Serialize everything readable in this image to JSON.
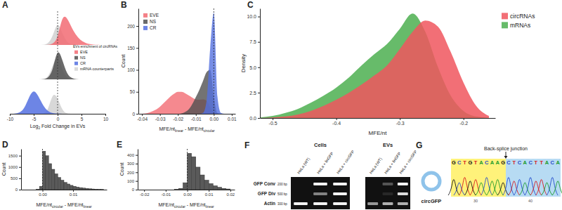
{
  "chart_data": [
    {
      "panel": "A",
      "type": "ridgeline",
      "x": [
        -10,
        -9,
        -8,
        -7,
        -6,
        -5,
        -4,
        -3,
        -2,
        -1,
        0,
        1,
        2,
        3,
        4,
        5,
        6,
        7,
        8,
        9,
        10
      ],
      "series": [
        {
          "name": "EVE",
          "color": "#f26b73",
          "values": [
            0,
            0,
            0,
            0,
            0,
            0,
            0,
            0,
            0,
            0.02,
            0.1,
            0.55,
            0.5,
            0.3,
            0.16,
            0.07,
            0.03,
            0.01,
            0,
            0,
            0
          ]
        },
        {
          "name": "NS",
          "color": "#505050",
          "values": [
            0,
            0,
            0,
            0,
            0,
            0,
            0,
            0,
            0.02,
            0.15,
            0.6,
            0.35,
            0.08,
            0.02,
            0,
            0,
            0,
            0,
            0,
            0,
            0
          ]
        },
        {
          "name": "CR",
          "color": "#5470e0",
          "values": [
            0,
            0,
            0.02,
            0.08,
            0.3,
            0.45,
            0.32,
            0.14,
            0.04,
            0.01,
            0,
            0,
            0,
            0,
            0,
            0,
            0,
            0,
            0,
            0,
            0
          ]
        }
      ],
      "counterparts": {
        "name": "mRNA counterparts",
        "color": "#d4d4d4",
        "values": [
          [
            0,
            0,
            0,
            0,
            0,
            0,
            0,
            0,
            0.02,
            0.15,
            0.45,
            0.2,
            0.04,
            0.01,
            0,
            0,
            0,
            0,
            0,
            0,
            0
          ],
          [
            0,
            0,
            0,
            0,
            0,
            0,
            0,
            0,
            0.03,
            0.25,
            0.5,
            0.15,
            0.03,
            0,
            0,
            0,
            0,
            0,
            0,
            0,
            0
          ],
          [
            0,
            0,
            0,
            0,
            0,
            0,
            0,
            0,
            0.05,
            0.4,
            0.3,
            0.05,
            0,
            0,
            0,
            0,
            0,
            0,
            0,
            0,
            0
          ]
        ]
      },
      "xlim": [
        -10,
        10
      ],
      "xticks": [
        -10,
        -5,
        0,
        5,
        10
      ],
      "ylim": [
        0,
        0.7
      ],
      "x_label": [
        "Log",
        "2",
        " Fold Change in EVs"
      ],
      "legend_title": "EVs enrichment of circRNAs",
      "legend": "right",
      "tick_labels": "x",
      "vline": 0
    },
    {
      "panel": "B",
      "type": "area",
      "x": [
        -0.04,
        -0.038,
        -0.036,
        -0.034,
        -0.032,
        -0.03,
        -0.028,
        -0.026,
        -0.024,
        -0.022,
        -0.02,
        -0.018,
        -0.016,
        -0.014,
        -0.012,
        -0.01,
        -0.008,
        -0.006,
        -0.004,
        -0.002,
        0,
        0.002,
        0.004,
        0.006,
        0.008,
        0.01
      ],
      "series": [
        {
          "name": "EVE",
          "color": "#f26b73",
          "values": [
            0,
            1,
            3,
            6,
            10,
            16,
            24,
            32,
            40,
            46,
            50,
            50,
            47,
            42,
            37,
            33,
            32,
            33,
            30,
            15,
            3,
            0,
            0,
            0,
            0,
            0
          ]
        },
        {
          "name": "NS",
          "color": "#505050",
          "values": [
            0,
            0,
            0,
            0,
            0,
            0,
            0,
            0,
            0,
            0,
            0,
            1,
            4,
            10,
            22,
            38,
            55,
            75,
            95,
            100,
            40,
            2,
            0,
            0,
            0,
            0
          ]
        },
        {
          "name": "CR",
          "color": "#5470e0",
          "values": [
            0,
            0,
            0,
            0,
            0,
            0,
            0,
            0,
            0,
            0,
            0,
            0,
            0,
            0,
            0,
            0,
            0,
            2,
            30,
            150,
            230,
            40,
            2,
            0,
            0,
            0
          ]
        }
      ],
      "xlim": [
        -0.042,
        0.012
      ],
      "xticks": [
        -0.04,
        -0.03,
        -0.02,
        -0.01,
        {
          "value": 0,
          "label": "0.00"
        },
        0.01
      ],
      "ylim": [
        0,
        240
      ],
      "yticks": [
        0,
        50,
        100,
        150,
        200
      ],
      "x_label": [
        "MFE/nt",
        "linear",
        " - MFE/nt",
        "circular"
      ],
      "y_label": "Count",
      "legend": "top-left",
      "vline": 0
    },
    {
      "panel": "C",
      "type": "area",
      "x": [
        -0.52,
        -0.5,
        -0.48,
        -0.46,
        -0.44,
        -0.42,
        -0.4,
        -0.38,
        -0.36,
        -0.34,
        -0.32,
        -0.3,
        -0.28,
        -0.26,
        -0.24,
        -0.22,
        -0.2,
        -0.18,
        -0.16
      ],
      "series": [
        {
          "name": "circRNAs",
          "color": "#f0565e",
          "values": [
            0,
            0.05,
            0.15,
            0.35,
            0.7,
            1.2,
            1.8,
            2.5,
            3.3,
            4.2,
            5.2,
            6.8,
            8.5,
            9.6,
            9,
            6.5,
            3.5,
            1.2,
            0.2
          ]
        },
        {
          "name": "mRNAs",
          "color": "#4caf50",
          "values": [
            0.05,
            0.2,
            0.5,
            0.9,
            1.5,
            2.2,
            3,
            4,
            5.2,
            6.3,
            7.3,
            8.8,
            10.3,
            8.5,
            5,
            2.2,
            0.7,
            0.15,
            0.02
          ]
        }
      ],
      "xlim": [
        -0.52,
        -0.15
      ],
      "xticks": [
        -0.5,
        -0.4,
        -0.3,
        -0.2
      ],
      "ylim": [
        0,
        10.8
      ],
      "yticks": [
        {
          "value": 0,
          "label": "0.0"
        },
        2.5,
        {
          "value": 5,
          "label": "5.0"
        },
        7.5,
        {
          "value": 10,
          "label": "10.0"
        }
      ],
      "x_label": [
        "MFE/nt"
      ],
      "y_label": "Density",
      "legend": "right"
    },
    {
      "panel": "D",
      "type": "histogram",
      "bins": [
        -0.002,
        -0.001,
        0,
        0.001,
        0.002,
        0.003,
        0.004,
        0.005,
        0.006,
        0.007,
        0.008,
        0.009,
        0.01,
        0.011,
        0.012,
        0.013,
        0.014,
        0.015,
        0.016,
        0.017,
        0.018,
        0.019,
        0.02
      ],
      "values": [
        20,
        150,
        1700,
        1500,
        1150,
        900,
        700,
        540,
        420,
        320,
        250,
        190,
        150,
        115,
        90,
        70,
        55,
        40,
        30,
        22,
        15,
        10
      ],
      "color": "#5a5a5a",
      "xlim": [
        -0.007,
        0.021
      ],
      "xticks": [
        {
          "value": 0,
          "label": "0.00"
        },
        0.01
      ],
      "ylim": [
        0,
        1800
      ],
      "yticks": [
        0,
        500,
        1000,
        1500
      ],
      "x_label": [
        "MFE/nt",
        "circular",
        " - MFE/nt",
        "linear"
      ],
      "y_label": "Count",
      "vline": 0
    },
    {
      "panel": "E",
      "type": "histogram",
      "bins": [
        -0.006,
        -0.004,
        -0.002,
        0,
        0.002,
        0.004,
        0.006,
        0.008,
        0.01,
        0.012,
        0.014,
        0.016,
        0.018,
        0.02
      ],
      "values": [
        5,
        15,
        80,
        420,
        380,
        260,
        170,
        110,
        70,
        45,
        28,
        15,
        8
      ],
      "color": "#5a5a5a",
      "xlim": [
        -0.023,
        0.022
      ],
      "xticks": [
        -0.02,
        -0.01,
        {
          "value": 0,
          "label": "0.00"
        },
        0.01,
        0.02
      ],
      "ylim": [
        0,
        470
      ],
      "yticks": [
        0,
        100,
        200,
        300,
        400
      ],
      "x_label": [
        "MFE/nt",
        "circular",
        " - MFE/nt",
        "linear"
      ],
      "y_label": "Count",
      "vline": 0
    }
  ],
  "gel": {
    "panel": "F",
    "lanes": [
      "HeLa (WT)",
      "HeLa + linGFP",
      "HeLa + circGFP"
    ],
    "rows": [
      {
        "label": "GFP Conv",
        "size": "200 bp"
      },
      {
        "label": "GFP Div",
        "size": "500 bp"
      },
      {
        "label": "Actin",
        "size": "300 bp"
      }
    ],
    "groups": [
      {
        "title": "Cells",
        "bands": [
          [
            0,
            1,
            1
          ],
          [
            0,
            0.5,
            1
          ],
          [
            1,
            1,
            1
          ]
        ]
      },
      {
        "title": "EVs",
        "bands": [
          [
            0,
            0.3,
            1
          ],
          [
            0,
            0.1,
            0.9
          ],
          [
            0.6,
            0.7,
            0.7
          ]
        ]
      }
    ]
  },
  "chromatogram": {
    "panel": "G",
    "construct": "circGFP",
    "annotation": "Back-splice junction",
    "sequence": {
      "left": [
        "G",
        "C",
        "T",
        "G",
        "T",
        "A",
        "C",
        "A",
        "A",
        "G"
      ],
      "right": [
        "C",
        "T",
        "C",
        "A",
        "C",
        "T",
        "T",
        "A",
        "C",
        "A"
      ]
    },
    "position_labels": [
      "30",
      "40"
    ]
  }
}
